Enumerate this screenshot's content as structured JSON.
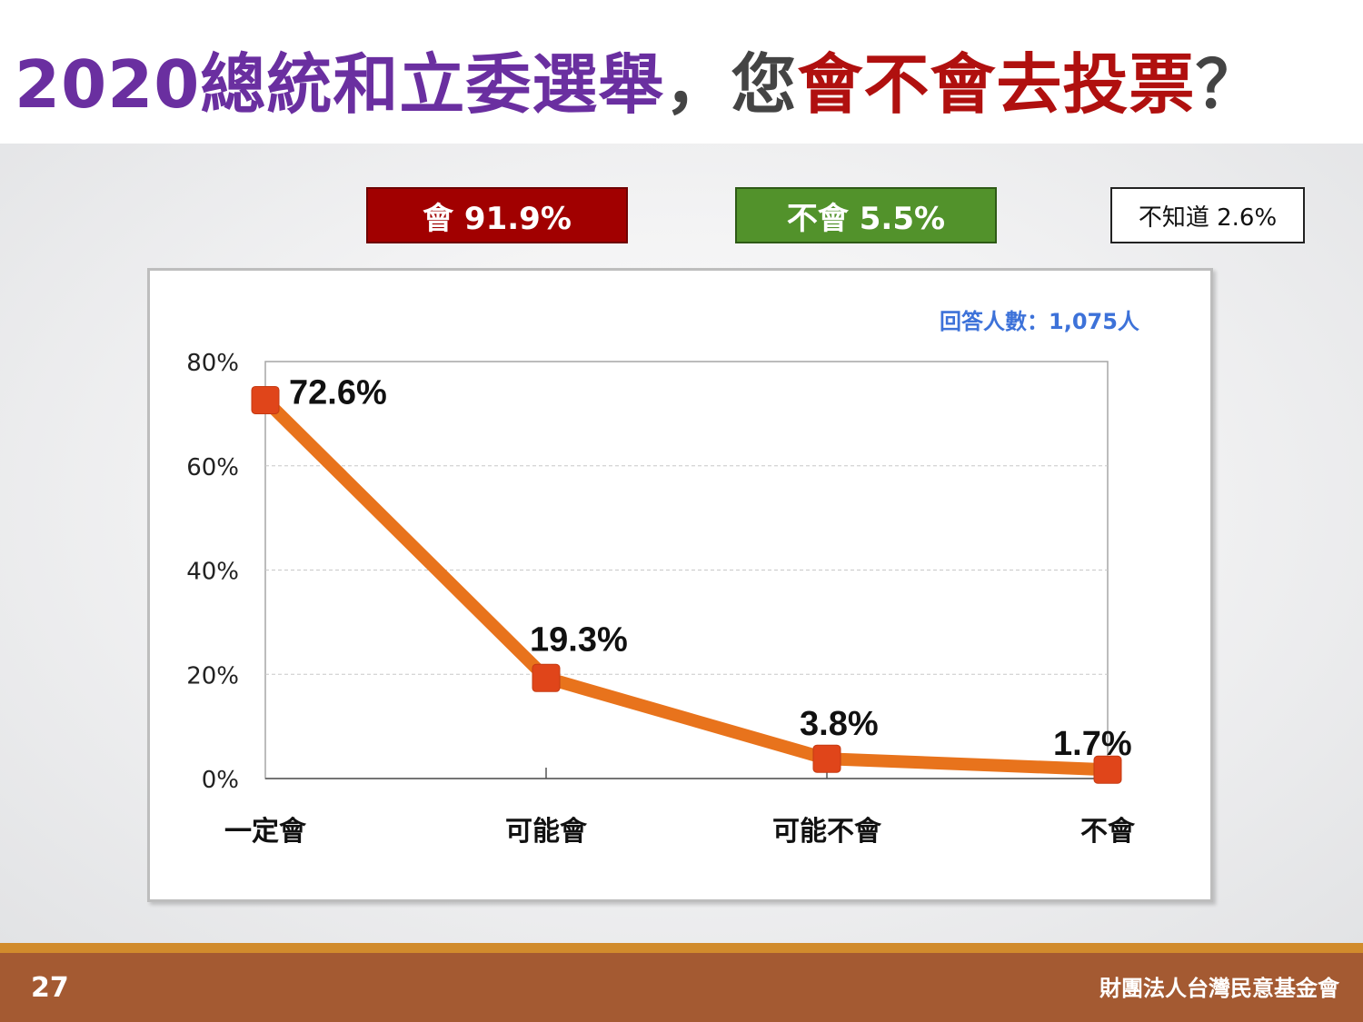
{
  "title": {
    "part1": "2020總統和立委選舉",
    "part2": "，您",
    "part3": "會不會去投票",
    "part4": "？"
  },
  "badges": {
    "will": "會 91.9%",
    "will_not": "不會 5.5%",
    "dont_know": "不知道 2.6%"
  },
  "respondents": "回答人數：1,075人",
  "footer": {
    "page": "27",
    "org": "財團法人台灣民意基金會"
  },
  "colors": {
    "title_purple": "#6a2fa0",
    "title_red": "#b0100f",
    "badge_red": "#a10000",
    "badge_green": "#52922b",
    "line": "#e8731c",
    "marker": "#e0451a",
    "respondents_blue": "#3d72d9",
    "footer_brown": "#a45a32",
    "footer_orange": "#d18b2c"
  },
  "chart_data": {
    "type": "line",
    "categories": [
      "一定會",
      "可能會",
      "可能不會",
      "不會"
    ],
    "values": [
      72.6,
      19.3,
      3.8,
      1.7
    ],
    "data_labels": [
      "72.6%",
      "19.3%",
      "3.8%",
      "1.7%"
    ],
    "ylim": [
      0,
      80
    ],
    "yticks": [
      0,
      20,
      40,
      60,
      80
    ],
    "ytick_labels": [
      "0%",
      "20%",
      "40%",
      "60%",
      "80%"
    ],
    "grid": true,
    "legend": "none"
  }
}
